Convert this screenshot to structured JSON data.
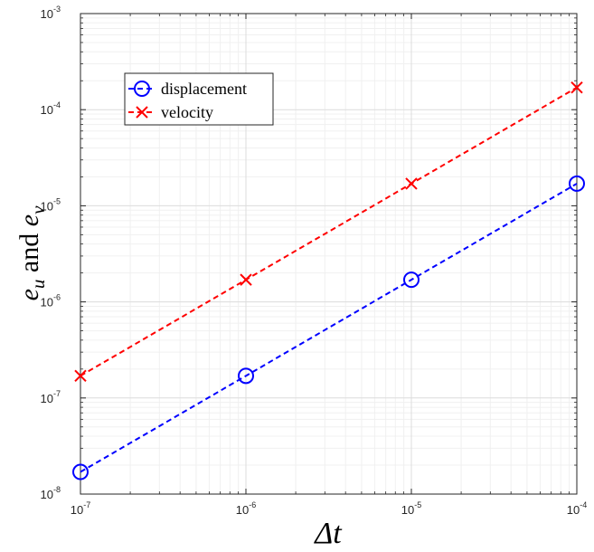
{
  "chart_data": {
    "type": "line",
    "xscale": "log",
    "yscale": "log",
    "xlim": [
      1e-07,
      0.0001
    ],
    "ylim": [
      1e-08,
      0.001
    ],
    "grid": true,
    "legend_position": "top-left",
    "xlabel": "Δt",
    "ylabel": {
      "prefix": "e",
      "sub1": "u",
      "mid": " and ",
      "sub2": "v"
    },
    "x_ticks": [
      {
        "base": "10",
        "exp": "-7",
        "value": 1e-07
      },
      {
        "base": "10",
        "exp": "-6",
        "value": 1e-06
      },
      {
        "base": "10",
        "exp": "-5",
        "value": 1e-05
      },
      {
        "base": "10",
        "exp": "-4",
        "value": 0.0001
      }
    ],
    "y_ticks": [
      {
        "base": "10",
        "exp": "-8",
        "value": 1e-08
      },
      {
        "base": "10",
        "exp": "-7",
        "value": 1e-07
      },
      {
        "base": "10",
        "exp": "-6",
        "value": 1e-06
      },
      {
        "base": "10",
        "exp": "-5",
        "value": 1e-05
      },
      {
        "base": "10",
        "exp": "-4",
        "value": 0.0001
      },
      {
        "base": "10",
        "exp": "-3",
        "value": 0.001
      }
    ],
    "series": [
      {
        "name": "displacement",
        "color": "#0000ff",
        "marker": "circle",
        "line_style": "dashed",
        "x": [
          1e-07,
          1e-06,
          1e-05,
          0.0001
        ],
        "y": [
          1.7e-08,
          1.7e-07,
          1.7e-06,
          1.7e-05
        ]
      },
      {
        "name": "velocity",
        "color": "#ff0000",
        "marker": "x",
        "line_style": "dashed",
        "x": [
          1e-07,
          1e-06,
          1e-05,
          0.0001
        ],
        "y": [
          1.7e-07,
          1.7e-06,
          1.7e-05,
          0.00017
        ]
      }
    ]
  }
}
